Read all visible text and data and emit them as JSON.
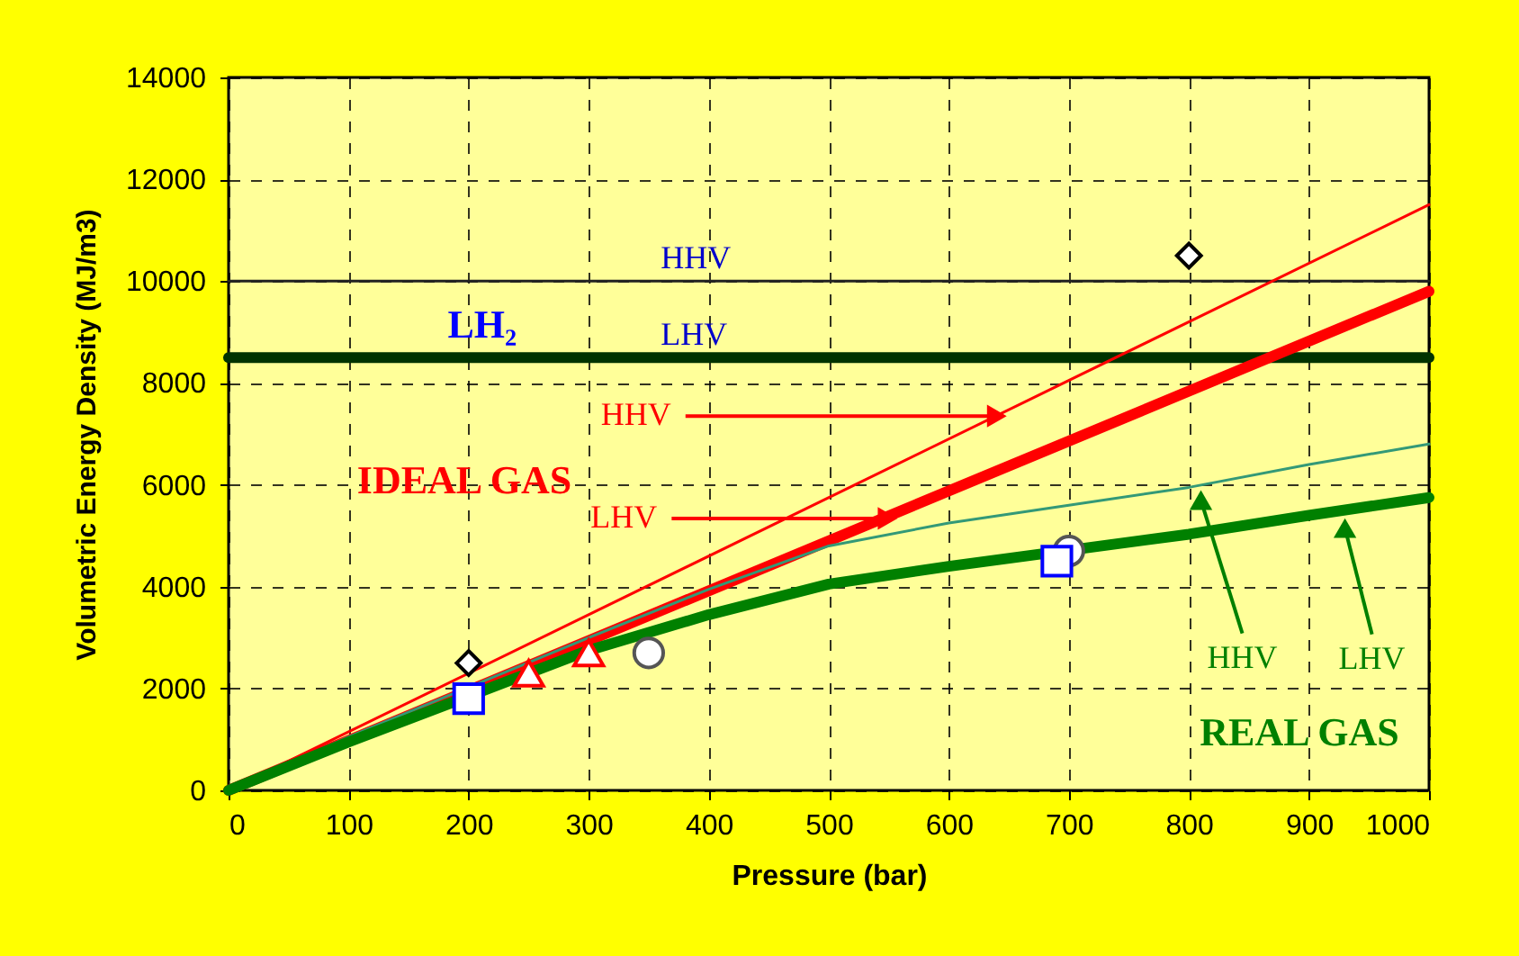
{
  "chart_data": {
    "type": "line",
    "xlabel": "Pressure (bar)",
    "ylabel": "Volumetric Energy Density (MJ/m3)",
    "xlim": [
      0,
      1000
    ],
    "xticks": [
      0,
      100,
      200,
      300,
      400,
      500,
      600,
      700,
      800,
      900,
      1000
    ],
    "ylim": [
      0,
      14000
    ],
    "yticks": [
      0,
      2000,
      4000,
      6000,
      8000,
      10000,
      12000,
      14000
    ],
    "grid": true,
    "line_style": "solid",
    "series": [
      {
        "color": "#222222",
        "x": [
          0,
          1000
        ],
        "values": [
          10000,
          10000
        ]
      },
      {
        "color": "#003300",
        "x": [
          0,
          1000
        ],
        "values": [
          8500,
          8500
        ]
      },
      {
        "color": "#ff0000",
        "x": [
          0,
          1000
        ],
        "values": [
          0,
          11500
        ]
      },
      {
        "color": "#ff0000",
        "x": [
          0,
          1000
        ],
        "values": [
          0,
          9800
        ]
      },
      {
        "color": "#339977",
        "x": [
          0,
          100,
          300,
          400,
          500,
          600,
          700,
          800,
          900,
          1000
        ],
        "values": [
          0,
          1050,
          3000,
          3950,
          4800,
          5250,
          5600,
          5950,
          6400,
          6800
        ]
      },
      {
        "color": "#008000",
        "x": [
          0,
          100,
          300,
          400,
          500,
          600,
          800,
          900,
          1000
        ],
        "values": [
          0,
          950,
          2750,
          3450,
          4050,
          4400,
          5030,
          5400,
          5750
        ]
      },
      {
        "type": "scatter",
        "marker": "diamond",
        "color": "#000000",
        "x": [
          200,
          800
        ],
        "values": [
          2500,
          10500
        ]
      },
      {
        "type": "scatter",
        "marker": "circle",
        "color": "#555555",
        "x": [
          350,
          700
        ],
        "values": [
          2700,
          4700
        ]
      },
      {
        "type": "scatter",
        "marker": "square",
        "color": "#0000ff",
        "x": [
          200,
          690
        ],
        "values": [
          1800,
          4500
        ]
      },
      {
        "type": "scatter",
        "marker": "triangle",
        "color": "#ff0000",
        "x": [
          250,
          300
        ],
        "values": [
          2300,
          2700
        ]
      }
    ],
    "annotations": [
      {
        "text": "HHV",
        "x": 360,
        "y": 10000
      },
      {
        "text": "LH₂",
        "x": 250,
        "y": 8500
      },
      {
        "text": "LHV",
        "x": 360,
        "y": 8500
      },
      {
        "text": "HHV",
        "x": 640,
        "y": 7350
      },
      "IDEAL GAS",
      {
        "text": "LHV",
        "x": 549,
        "y": 5340
      },
      {
        "text": "HHV",
        "x": 810,
        "y": 5700
      },
      {
        "text": "LHV",
        "x": 930,
        "y": 5150
      },
      "REAL GAS"
    ]
  }
}
